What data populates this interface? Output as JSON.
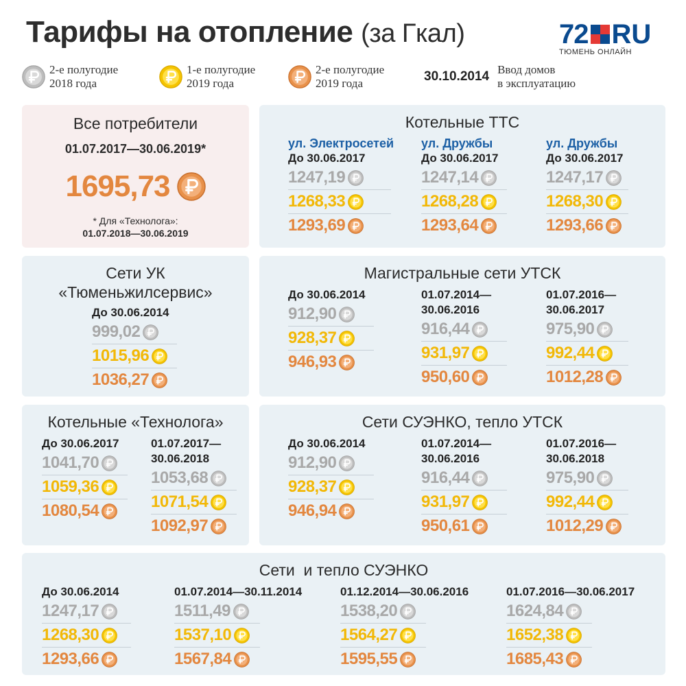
{
  "header": {
    "title": "Тарифы на отопление",
    "title_suffix": "(за Гкал)"
  },
  "logo": {
    "number": "72",
    "ru": "RU",
    "subtitle": "ТЮМЕНЬ ОНЛАЙН"
  },
  "legend": [
    {
      "icon": "silver-ruble-coin-icon",
      "line1": "2-е полугодие",
      "line2": "2018 года"
    },
    {
      "icon": "gold-ruble-coin-icon",
      "line1": "1-е полугодие",
      "line2": "2019 года"
    },
    {
      "icon": "copper-ruble-coin-icon",
      "line1": "2-е полугодие",
      "line2": "2019 года"
    },
    {
      "date": "30.10.2014",
      "line1": "Ввод домов",
      "line2": "в эксплуатацию"
    }
  ],
  "colors": {
    "silver": "#a8a8a8",
    "gold": "#f2b807",
    "copper": "#e3873f",
    "street": "#1b5fa5",
    "panel_blue": "#eaf1f5",
    "panel_pink": "#f8eeee"
  },
  "all_consumers": {
    "title": "Все потребители",
    "period": "01.07.2017—30.06.2019*",
    "value": "1695,73",
    "note_line1": "* Для «Технолога»:",
    "note_line2": "01.07.2018—30.06.2019"
  },
  "ttc": {
    "title": "Котельные ТТС",
    "cols": [
      {
        "street": "ул. Электросетей",
        "head": "До 30.06.2017",
        "v": [
          "1247,19",
          "1268,33",
          "1293,69"
        ]
      },
      {
        "street": "ул. Дружбы",
        "head": "До 30.06.2017",
        "v": [
          "1247,14",
          "1268,28",
          "1293,64"
        ]
      },
      {
        "street": "ул. Дружбы",
        "head": "До 30.06.2017",
        "v": [
          "1247,17",
          "1268,30",
          "1293,66"
        ]
      }
    ]
  },
  "uk": {
    "title1": "Сети УК",
    "title2": "«Тюменьжилсервис»",
    "head": "До 30.06.2014",
    "v": [
      "999,02",
      "1015,96",
      "1036,27"
    ]
  },
  "utsk": {
    "title": "Магистральные сети УТСК",
    "cols": [
      {
        "head1": "",
        "head2": "До 30.06.2014",
        "v": [
          "912,90",
          "928,37",
          "946,93"
        ]
      },
      {
        "head1": "01.07.2014—",
        "head2": "30.06.2016",
        "v": [
          "916,44",
          "931,97",
          "950,60"
        ]
      },
      {
        "head1": "01.07.2016—",
        "head2": "30.06.2017",
        "v": [
          "975,90",
          "992,44",
          "1012,28"
        ]
      }
    ]
  },
  "tech": {
    "title": "Котельные «Технолога»",
    "cols": [
      {
        "head1": "",
        "head2": "До 30.06.2017",
        "v": [
          "1041,70",
          "1059,36",
          "1080,54"
        ]
      },
      {
        "head1": "01.07.2017—",
        "head2": "30.06.2018",
        "v": [
          "1053,68",
          "1071,54",
          "1092,97"
        ]
      }
    ]
  },
  "suenko_utsk": {
    "title": "Сети СУЭНКО, тепло УТСК",
    "cols": [
      {
        "head1": "",
        "head2": "До 30.06.2014",
        "v": [
          "912,90",
          "928,37",
          "946,94"
        ]
      },
      {
        "head1": "01.07.2014—",
        "head2": "30.06.2016",
        "v": [
          "916,44",
          "931,97",
          "950,61"
        ]
      },
      {
        "head1": "01.07.2016—",
        "head2": "30.06.2018",
        "v": [
          "975,90",
          "992,44",
          "1012,29"
        ]
      }
    ]
  },
  "suenko": {
    "title": "Сети  и тепло СУЭНКО",
    "cols": [
      {
        "head": "До 30.06.2014",
        "v": [
          "1247,17",
          "1268,30",
          "1293,66"
        ]
      },
      {
        "head": "01.07.2014—30.11.2014",
        "v": [
          "1511,49",
          "1537,10",
          "1567,84"
        ]
      },
      {
        "head": "01.12.2014—30.06.2016",
        "v": [
          "1538,20",
          "1564,27",
          "1595,55"
        ]
      },
      {
        "head": "01.07.2016—30.06.2017",
        "v": [
          "1624,84",
          "1652,38",
          "1685,43"
        ]
      }
    ]
  }
}
